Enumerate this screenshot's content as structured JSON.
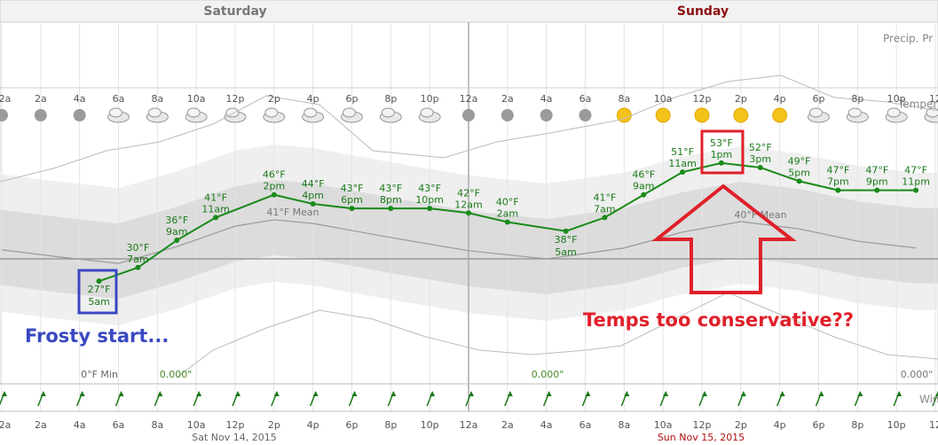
{
  "chart_data": {
    "type": "line",
    "days": [
      "Saturday",
      "Sunday"
    ],
    "dates": [
      "Sat Nov 14, 2015",
      "Sun Nov 15, 2015"
    ],
    "hour_labels": [
      "12a",
      "2a",
      "4a",
      "6a",
      "8a",
      "10a",
      "12p",
      "2p",
      "4p",
      "6p",
      "8p",
      "10p",
      "12a",
      "2a",
      "4a",
      "6a",
      "8a",
      "10a",
      "12p",
      "2p",
      "4p",
      "6p",
      "8p",
      "10p",
      "12"
    ],
    "panel_labels": [
      "Precip. Pr",
      "Temper",
      "Win"
    ],
    "xlim": [
      0,
      48
    ],
    "ylim": [
      5,
      83
    ],
    "temperature": {
      "color": "#1a8a1a",
      "x": [
        5,
        7,
        9,
        11,
        14,
        16,
        18,
        20,
        22,
        24,
        26,
        29,
        31,
        33,
        35,
        37,
        39,
        41,
        43,
        45,
        47
      ],
      "values": [
        27,
        30,
        36,
        41,
        46,
        44,
        43,
        43,
        43,
        42,
        40,
        38,
        41,
        46,
        51,
        53,
        52,
        49,
        47,
        47,
        47
      ],
      "value_labels": [
        "27°F",
        "30°F",
        "36°F",
        "41°F",
        "46°F",
        "44°F",
        "43°F",
        "43°F",
        "43°F",
        "42°F",
        "40°F",
        "38°F",
        "41°F",
        "46°F",
        "51°F",
        "53°F",
        "52°F",
        "49°F",
        "47°F",
        "47°F",
        "47°F"
      ],
      "time_labels": [
        "5am",
        "7am",
        "9am",
        "11am",
        "2pm",
        "4pm",
        "6pm",
        "8pm",
        "10pm",
        "12am",
        "2am",
        "5am",
        "7am",
        "9am",
        "11am",
        "1pm",
        "3pm",
        "5pm",
        "7pm",
        "9pm",
        "11pm"
      ]
    },
    "mean": {
      "color": "#999999",
      "x": [
        0,
        3,
        6,
        9,
        12,
        14,
        16,
        20,
        24,
        28,
        32,
        35,
        38,
        41,
        44,
        47
      ],
      "values": [
        33.9,
        32.3,
        30.9,
        34.6,
        39.1,
        40.5,
        39.7,
        36.6,
        33.7,
        31.9,
        34.3,
        37.8,
        40.1,
        38.5,
        35.8,
        34.3
      ],
      "labels": [
        "41°F Mean",
        "40°F Mean"
      ]
    },
    "annotations": {
      "frosty": "Frosty start...",
      "conservative": "Temps too conservative??",
      "min": "0°F Min",
      "precip": [
        "0.000\"",
        "0.000\"",
        "0.000\""
      ]
    }
  }
}
